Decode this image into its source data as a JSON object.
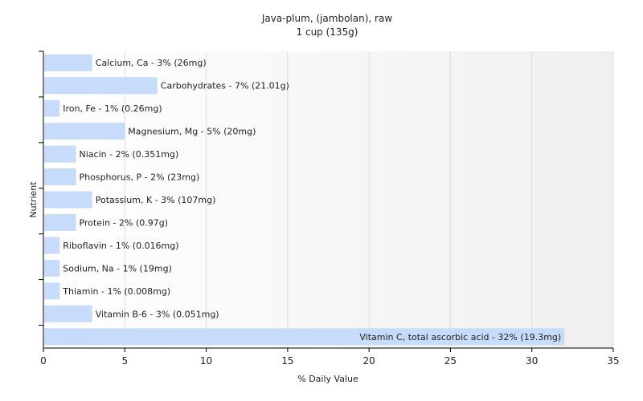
{
  "chart_data": {
    "type": "bar",
    "orientation": "horizontal",
    "title": "Java-plum, (jambolan), raw",
    "subtitle": "1 cup (135g)",
    "xlabel": "% Daily Value",
    "ylabel": "Nutrient",
    "xlim": [
      0,
      35
    ],
    "xticks": [
      0,
      5,
      10,
      15,
      20,
      25,
      30,
      35
    ],
    "grid": "vertical",
    "bar_color": "#c6dcfa",
    "background_gradient": [
      "#ffffff",
      "#efefef"
    ],
    "categories": [
      "Calcium, Ca",
      "Carbohydrates",
      "Iron, Fe",
      "Magnesium, Mg",
      "Niacin",
      "Phosphorus, P",
      "Potassium, K",
      "Protein",
      "Riboflavin",
      "Sodium, Na",
      "Thiamin",
      "Vitamin B-6",
      "Vitamin C, total ascorbic acid"
    ],
    "values": [
      3,
      7,
      1,
      5,
      2,
      2,
      3,
      2,
      1,
      1,
      1,
      3,
      32
    ],
    "bar_labels": [
      "Calcium, Ca - 3% (26mg)",
      "Carbohydrates - 7% (21.01g)",
      "Iron, Fe - 1% (0.26mg)",
      "Magnesium, Mg - 5% (20mg)",
      "Niacin - 2% (0.351mg)",
      "Phosphorus, P - 2% (23mg)",
      "Potassium, K - 3% (107mg)",
      "Protein - 2% (0.97g)",
      "Riboflavin - 1% (0.016mg)",
      "Sodium, Na - 1% (19mg)",
      "Thiamin - 1% (0.008mg)",
      "Vitamin B-6 - 3% (0.051mg)",
      "Vitamin C, total ascorbic acid - 32% (19.3mg)"
    ]
  }
}
